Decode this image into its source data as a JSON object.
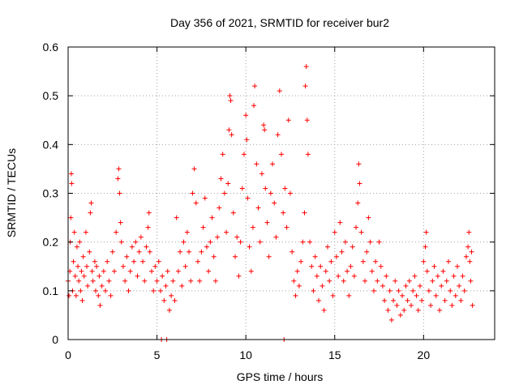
{
  "chart_data": {
    "type": "scatter",
    "title": "Day 356 of 2021, SRMTID for receiver bur2",
    "xlabel": "GPS time / hours",
    "ylabel": "SRMTID / TECUs",
    "xlim": [
      0,
      24
    ],
    "ylim": [
      0,
      0.6
    ],
    "x_ticks": [
      0,
      5,
      10,
      15,
      20
    ],
    "y_ticks": [
      0,
      0.1,
      0.2,
      0.3,
      0.4,
      0.5,
      0.6
    ],
    "x_tick_labels": [
      "0",
      "5",
      "10",
      "15",
      "20"
    ],
    "y_tick_labels": [
      "0",
      "0.1",
      "0.2",
      "0.3",
      "0.4",
      "0.5",
      "0.6"
    ],
    "grid": true,
    "marker": "+",
    "series": [
      {
        "name": "SRMTID",
        "color": "#ff0000",
        "points": [
          [
            0.0,
            0.12
          ],
          [
            0.05,
            0.09
          ],
          [
            0.1,
            0.14
          ],
          [
            0.12,
            0.2
          ],
          [
            0.15,
            0.25
          ],
          [
            0.18,
            0.34
          ],
          [
            0.2,
            0.32
          ],
          [
            0.25,
            0.1
          ],
          [
            0.3,
            0.16
          ],
          [
            0.35,
            0.22
          ],
          [
            0.4,
            0.13
          ],
          [
            0.45,
            0.09
          ],
          [
            0.5,
            0.19
          ],
          [
            0.55,
            0.15
          ],
          [
            0.6,
            0.12
          ],
          [
            0.65,
            0.2
          ],
          [
            0.7,
            0.1
          ],
          [
            0.75,
            0.14
          ],
          [
            0.8,
            0.08
          ],
          [
            0.85,
            0.17
          ],
          [
            0.9,
            0.13
          ],
          [
            1.0,
            0.22
          ],
          [
            1.05,
            0.15
          ],
          [
            1.1,
            0.11
          ],
          [
            1.2,
            0.18
          ],
          [
            1.25,
            0.26
          ],
          [
            1.3,
            0.28
          ],
          [
            1.35,
            0.14
          ],
          [
            1.4,
            0.12
          ],
          [
            1.5,
            0.16
          ],
          [
            1.55,
            0.1
          ],
          [
            1.6,
            0.15
          ],
          [
            1.7,
            0.09
          ],
          [
            1.75,
            0.13
          ],
          [
            1.8,
            0.07
          ],
          [
            1.9,
            0.11
          ],
          [
            2.0,
            0.14
          ],
          [
            2.1,
            0.1
          ],
          [
            2.2,
            0.16
          ],
          [
            2.3,
            0.12
          ],
          [
            2.4,
            0.09
          ],
          [
            2.5,
            0.18
          ],
          [
            2.6,
            0.14
          ],
          [
            2.7,
            0.22
          ],
          [
            2.8,
            0.33
          ],
          [
            2.85,
            0.35
          ],
          [
            2.9,
            0.3
          ],
          [
            2.95,
            0.24
          ],
          [
            3.0,
            0.2
          ],
          [
            3.1,
            0.15
          ],
          [
            3.2,
            0.12
          ],
          [
            3.3,
            0.17
          ],
          [
            3.4,
            0.1
          ],
          [
            3.5,
            0.14
          ],
          [
            3.6,
            0.19
          ],
          [
            3.7,
            0.16
          ],
          [
            3.8,
            0.2
          ],
          [
            3.9,
            0.13
          ],
          [
            4.0,
            0.18
          ],
          [
            4.1,
            0.21
          ],
          [
            4.2,
            0.16
          ],
          [
            4.3,
            0.12
          ],
          [
            4.4,
            0.19
          ],
          [
            4.5,
            0.23
          ],
          [
            4.55,
            0.26
          ],
          [
            4.6,
            0.18
          ],
          [
            4.7,
            0.14
          ],
          [
            4.8,
            0.1
          ],
          [
            4.9,
            0.15
          ],
          [
            5.0,
            0.12
          ],
          [
            5.1,
            0.16
          ],
          [
            5.2,
            0.1
          ],
          [
            5.25,
            0.0
          ],
          [
            5.3,
            0.13
          ],
          [
            5.4,
            0.08
          ],
          [
            5.5,
            0.11
          ],
          [
            5.55,
            0.0
          ],
          [
            5.6,
            0.14
          ],
          [
            5.7,
            0.06
          ],
          [
            5.8,
            0.09
          ],
          [
            5.9,
            0.12
          ],
          [
            6.0,
            0.08
          ],
          [
            6.1,
            0.25
          ],
          [
            6.2,
            0.14
          ],
          [
            6.3,
            0.18
          ],
          [
            6.4,
            0.11
          ],
          [
            6.5,
            0.2
          ],
          [
            6.6,
            0.15
          ],
          [
            6.7,
            0.22
          ],
          [
            6.8,
            0.18
          ],
          [
            6.9,
            0.12
          ],
          [
            7.0,
            0.3
          ],
          [
            7.1,
            0.35
          ],
          [
            7.2,
            0.28
          ],
          [
            7.3,
            0.16
          ],
          [
            7.4,
            0.12
          ],
          [
            7.5,
            0.18
          ],
          [
            7.6,
            0.23
          ],
          [
            7.7,
            0.29
          ],
          [
            7.8,
            0.19
          ],
          [
            7.9,
            0.14
          ],
          [
            8.0,
            0.2
          ],
          [
            8.1,
            0.25
          ],
          [
            8.2,
            0.17
          ],
          [
            8.3,
            0.12
          ],
          [
            8.4,
            0.21
          ],
          [
            8.5,
            0.27
          ],
          [
            8.6,
            0.33
          ],
          [
            8.7,
            0.38
          ],
          [
            8.8,
            0.3
          ],
          [
            8.9,
            0.22
          ],
          [
            9.0,
            0.32
          ],
          [
            9.05,
            0.43
          ],
          [
            9.1,
            0.5
          ],
          [
            9.15,
            0.49
          ],
          [
            9.2,
            0.42
          ],
          [
            9.3,
            0.26
          ],
          [
            9.4,
            0.17
          ],
          [
            9.5,
            0.21
          ],
          [
            9.6,
            0.13
          ],
          [
            9.7,
            0.2
          ],
          [
            9.8,
            0.31
          ],
          [
            9.9,
            0.38
          ],
          [
            10.0,
            0.46
          ],
          [
            10.05,
            0.41
          ],
          [
            10.1,
            0.29
          ],
          [
            10.2,
            0.19
          ],
          [
            10.3,
            0.14
          ],
          [
            10.4,
            0.23
          ],
          [
            10.45,
            0.48
          ],
          [
            10.5,
            0.52
          ],
          [
            10.6,
            0.36
          ],
          [
            10.7,
            0.27
          ],
          [
            10.8,
            0.2
          ],
          [
            10.9,
            0.34
          ],
          [
            11.0,
            0.44
          ],
          [
            11.05,
            0.43
          ],
          [
            11.1,
            0.31
          ],
          [
            11.2,
            0.24
          ],
          [
            11.3,
            0.17
          ],
          [
            11.4,
            0.3
          ],
          [
            11.5,
            0.36
          ],
          [
            11.6,
            0.28
          ],
          [
            11.7,
            0.21
          ],
          [
            11.8,
            0.42
          ],
          [
            11.9,
            0.51
          ],
          [
            12.0,
            0.38
          ],
          [
            12.1,
            0.26
          ],
          [
            12.15,
            0.0
          ],
          [
            12.2,
            0.31
          ],
          [
            12.3,
            0.23
          ],
          [
            12.4,
            0.45
          ],
          [
            12.5,
            0.3
          ],
          [
            12.6,
            0.18
          ],
          [
            12.7,
            0.12
          ],
          [
            12.8,
            0.09
          ],
          [
            12.9,
            0.14
          ],
          [
            13.0,
            0.11
          ],
          [
            13.1,
            0.16
          ],
          [
            13.2,
            0.2
          ],
          [
            13.3,
            0.26
          ],
          [
            13.35,
            0.52
          ],
          [
            13.4,
            0.56
          ],
          [
            13.45,
            0.45
          ],
          [
            13.5,
            0.38
          ],
          [
            13.6,
            0.2
          ],
          [
            13.7,
            0.15
          ],
          [
            13.8,
            0.1
          ],
          [
            13.9,
            0.17
          ],
          [
            14.0,
            0.13
          ],
          [
            14.1,
            0.08
          ],
          [
            14.2,
            0.15
          ],
          [
            14.3,
            0.11
          ],
          [
            14.4,
            0.06
          ],
          [
            14.5,
            0.14
          ],
          [
            14.6,
            0.19
          ],
          [
            14.7,
            0.12
          ],
          [
            14.8,
            0.16
          ],
          [
            14.9,
            0.09
          ],
          [
            15.0,
            0.22
          ],
          [
            15.1,
            0.17
          ],
          [
            15.2,
            0.13
          ],
          [
            15.3,
            0.24
          ],
          [
            15.4,
            0.18
          ],
          [
            15.5,
            0.12
          ],
          [
            15.6,
            0.2
          ],
          [
            15.7,
            0.14
          ],
          [
            15.8,
            0.09
          ],
          [
            15.9,
            0.15
          ],
          [
            16.0,
            0.19
          ],
          [
            16.1,
            0.13
          ],
          [
            16.2,
            0.23
          ],
          [
            16.3,
            0.28
          ],
          [
            16.35,
            0.36
          ],
          [
            16.4,
            0.32
          ],
          [
            16.5,
            0.22
          ],
          [
            16.6,
            0.16
          ],
          [
            16.7,
            0.12
          ],
          [
            16.8,
            0.18
          ],
          [
            16.9,
            0.25
          ],
          [
            17.0,
            0.2
          ],
          [
            17.1,
            0.14
          ],
          [
            17.2,
            0.1
          ],
          [
            17.3,
            0.16
          ],
          [
            17.4,
            0.12
          ],
          [
            17.5,
            0.2
          ],
          [
            17.6,
            0.15
          ],
          [
            17.7,
            0.11
          ],
          [
            17.8,
            0.08
          ],
          [
            17.9,
            0.13
          ],
          [
            18.0,
            0.06
          ],
          [
            18.1,
            0.1
          ],
          [
            18.2,
            0.04
          ],
          [
            18.3,
            0.08
          ],
          [
            18.4,
            0.12
          ],
          [
            18.5,
            0.07
          ],
          [
            18.6,
            0.1
          ],
          [
            18.7,
            0.05
          ],
          [
            18.8,
            0.09
          ],
          [
            18.9,
            0.06
          ],
          [
            19.0,
            0.11
          ],
          [
            19.1,
            0.08
          ],
          [
            19.2,
            0.12
          ],
          [
            19.3,
            0.07
          ],
          [
            19.4,
            0.1
          ],
          [
            19.5,
            0.13
          ],
          [
            19.6,
            0.09
          ],
          [
            19.7,
            0.06
          ],
          [
            19.8,
            0.11
          ],
          [
            19.9,
            0.08
          ],
          [
            20.0,
            0.16
          ],
          [
            20.1,
            0.19
          ],
          [
            20.15,
            0.22
          ],
          [
            20.2,
            0.14
          ],
          [
            20.3,
            0.1
          ],
          [
            20.4,
            0.07
          ],
          [
            20.5,
            0.12
          ],
          [
            20.6,
            0.15
          ],
          [
            20.7,
            0.09
          ],
          [
            20.8,
            0.13
          ],
          [
            20.9,
            0.06
          ],
          [
            21.0,
            0.11
          ],
          [
            21.1,
            0.14
          ],
          [
            21.2,
            0.08
          ],
          [
            21.3,
            0.12
          ],
          [
            21.4,
            0.16
          ],
          [
            21.5,
            0.1
          ],
          [
            21.6,
            0.07
          ],
          [
            21.7,
            0.13
          ],
          [
            21.8,
            0.09
          ],
          [
            21.9,
            0.15
          ],
          [
            22.0,
            0.11
          ],
          [
            22.1,
            0.08
          ],
          [
            22.2,
            0.13
          ],
          [
            22.3,
            0.1
          ],
          [
            22.4,
            0.17
          ],
          [
            22.5,
            0.19
          ],
          [
            22.55,
            0.22
          ],
          [
            22.6,
            0.16
          ],
          [
            22.65,
            0.12
          ],
          [
            22.7,
            0.18
          ],
          [
            22.75,
            0.07
          ]
        ]
      }
    ]
  }
}
